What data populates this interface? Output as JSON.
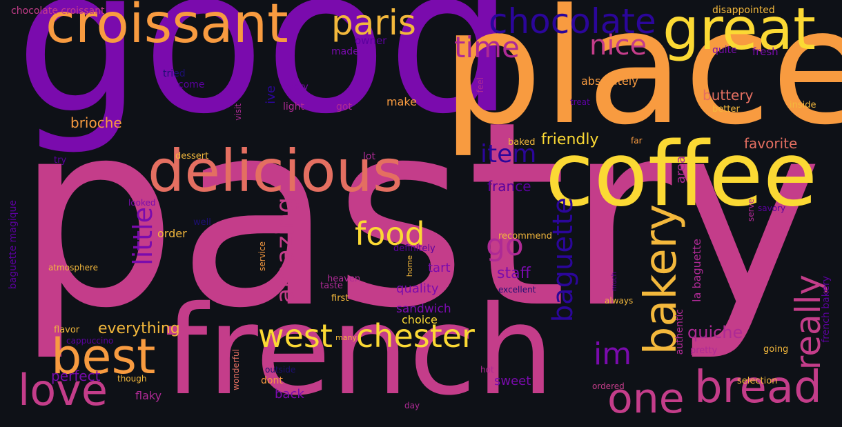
{
  "background_color": "#0e1117",
  "palette": [
    "#fbd934",
    "#f3b83c",
    "#f89b40",
    "#e46f61",
    "#c43d8a",
    "#ae2a95",
    "#7a0bad",
    "#5b019e",
    "#2b069a",
    "#1d0f72"
  ],
  "words": {
    "pastry": "pastry",
    "good": "good",
    "place": "place",
    "french": "french",
    "coffee": "coffee",
    "croissant": "croissant",
    "delicious": "delicious",
    "great": "great",
    "bread": "bread",
    "one": "one",
    "best": "best",
    "love": "love",
    "chester": "chester",
    "west": "west",
    "chocolate": "chocolate",
    "paris": "paris",
    "time": "time",
    "nice": "nice",
    "food": "food",
    "bakery": "bakery",
    "go": "go",
    "im": "im",
    "really": "really",
    "baguette": "baguette",
    "amazing": "amazing",
    "little": "little",
    "item": "item",
    "quiche": "quiche",
    "staff": "staff",
    "everything": "everything",
    "perfect": "perfect",
    "brioche": "brioche",
    "friendly": "friendly",
    "favorite": "favorite",
    "buttery": "buttery",
    "france": "france",
    "tart": "tart",
    "quality": "quality",
    "sandwich": "sandwich",
    "choice": "choice",
    "sweet": "sweet",
    "back": "back",
    "flaky": "flaky",
    "make": "make",
    "absolutely": "absolutely",
    "order": "order",
    "fresh": "fresh",
    "quite": "quite",
    "chocolate_croissant": "chocolate croissant",
    "disappointed": "disappointed",
    "owner": "owner",
    "made": "made",
    "tried": "tried",
    "come": "come",
    "every": "every",
    "light": "light",
    "got": "got",
    "ive": "ive",
    "visit": "visit",
    "feel": "feel",
    "treat": "treat",
    "better": "better",
    "inside": "inside",
    "dessert": "dessert",
    "lot": "lot",
    "baked": "baked",
    "far": "far",
    "area": "area",
    "try": "try",
    "looked": "looked",
    "well": "well",
    "recommend": "recommend",
    "definitely": "definitely",
    "atmosphere": "atmosphere",
    "service": "service",
    "home": "home",
    "heaven": "heaven",
    "taste": "taste",
    "first": "first",
    "excellent": "excellent",
    "much": "much",
    "always": "always",
    "la_baguette": "la baguette",
    "authentic": "authentic",
    "pretty": "pretty",
    "going": "going",
    "selection": "selection",
    "french_bakery": "french bakery",
    "savory": "savory",
    "serve": "serve",
    "baguette_magique": "baguette magique",
    "flavor": "flavor",
    "cappuccino": "cappuccino",
    "though": "though",
    "wonderful": "wonderful",
    "outside": "outside",
    "dont": "dont",
    "many": "many",
    "hot": "hot",
    "day": "day",
    "ordered": "ordered"
  }
}
